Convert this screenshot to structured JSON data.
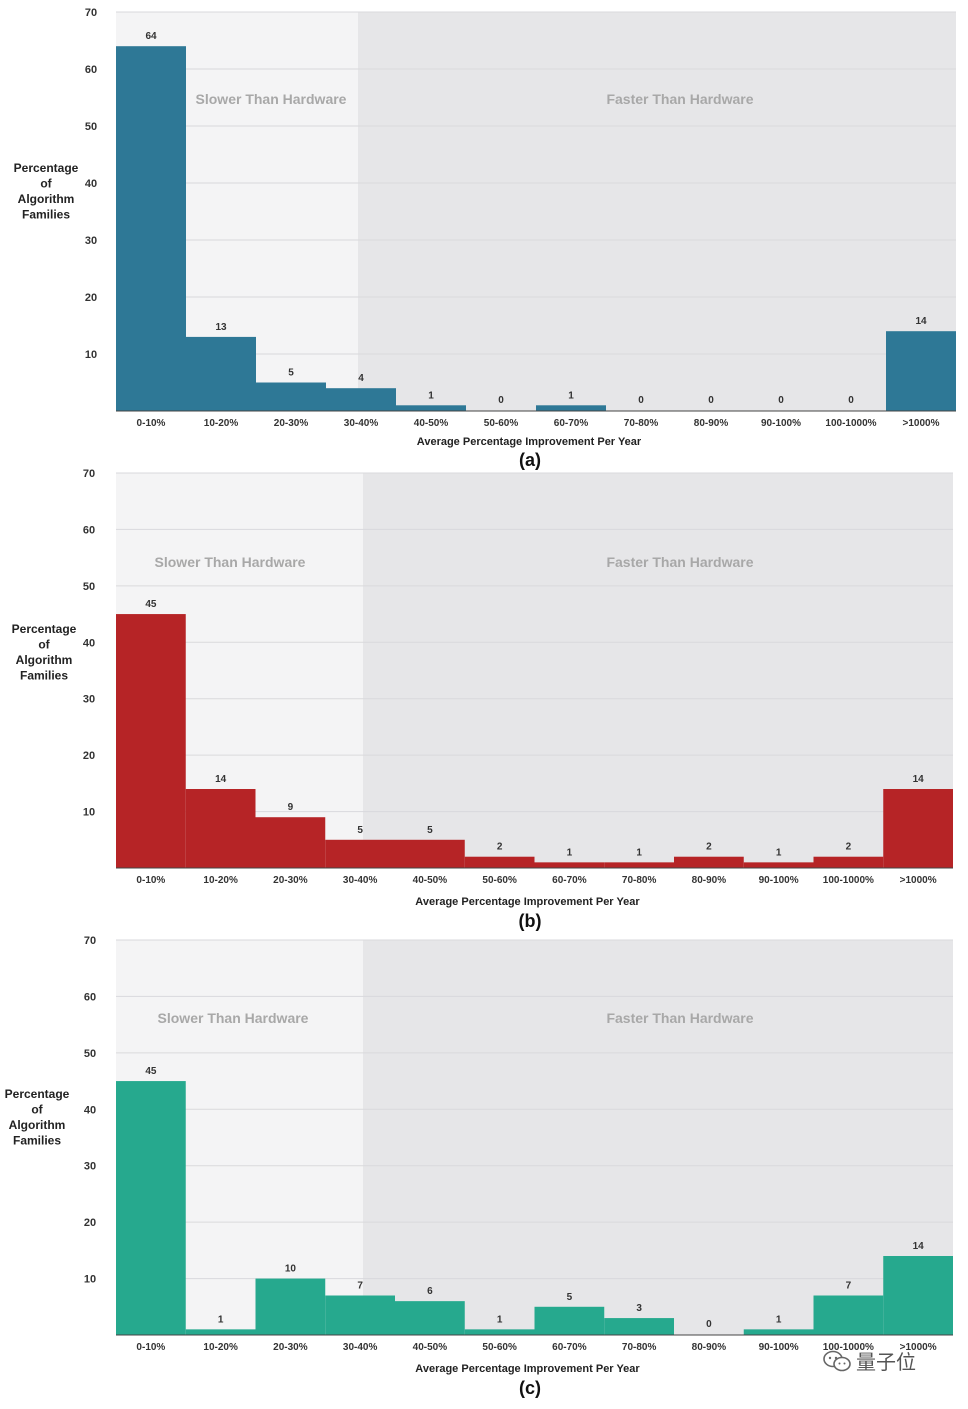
{
  "chart_data": [
    {
      "type": "bar",
      "panel_label": "(a)",
      "color": "#2e7896",
      "categories": [
        "0-10%",
        "10-20%",
        "20-30%",
        "30-40%",
        "40-50%",
        "50-60%",
        "60-70%",
        "70-80%",
        "80-90%",
        "90-100%",
        "100-1000%",
        ">1000%"
      ],
      "values": [
        64,
        13,
        5,
        4,
        1,
        0,
        1,
        0,
        0,
        0,
        0,
        14
      ],
      "ylabel": [
        "Percentage",
        "of",
        "Algorithm",
        "Families"
      ],
      "xlabel": "Average Percentage Improvement Per Year",
      "yticks": [
        10,
        20,
        30,
        40,
        50,
        60,
        70
      ],
      "ylim": [
        0,
        70
      ],
      "regions": {
        "slower": "Slower Than Hardware",
        "faster": "Faster Than Hardware"
      }
    },
    {
      "type": "bar",
      "panel_label": "(b)",
      "color": "#b62426",
      "categories": [
        "0-10%",
        "10-20%",
        "20-30%",
        "30-40%",
        "40-50%",
        "50-60%",
        "60-70%",
        "70-80%",
        "80-90%",
        "90-100%",
        "100-1000%",
        ">1000%"
      ],
      "values": [
        45,
        14,
        9,
        5,
        5,
        2,
        1,
        1,
        2,
        1,
        2,
        14
      ],
      "ylabel": [
        "Percentage",
        "of",
        "Algorithm",
        "Families"
      ],
      "xlabel": "Average Percentage Improvement Per Year",
      "yticks": [
        10,
        20,
        30,
        40,
        50,
        60,
        70
      ],
      "ylim": [
        0,
        70
      ],
      "regions": {
        "slower": "Slower Than Hardware",
        "faster": "Faster Than Hardware"
      }
    },
    {
      "type": "bar",
      "panel_label": "(c)",
      "color": "#26a98e",
      "categories": [
        "0-10%",
        "10-20%",
        "20-30%",
        "30-40%",
        "40-50%",
        "50-60%",
        "60-70%",
        "70-80%",
        "80-90%",
        "90-100%",
        "100-1000%",
        ">1000%"
      ],
      "values": [
        45,
        1,
        10,
        7,
        6,
        1,
        5,
        3,
        0,
        1,
        7,
        14
      ],
      "ylabel": [
        "Percentage",
        "of",
        "Algorithm",
        "Families"
      ],
      "xlabel": "Average Percentage Improvement Per Year",
      "yticks": [
        10,
        20,
        30,
        40,
        50,
        60,
        70
      ],
      "ylim": [
        0,
        70
      ],
      "regions": {
        "slower": "Slower Than Hardware",
        "faster": "Faster Than Hardware"
      }
    }
  ],
  "watermark": {
    "text": "量子位",
    "icon": "wechat-icon"
  }
}
